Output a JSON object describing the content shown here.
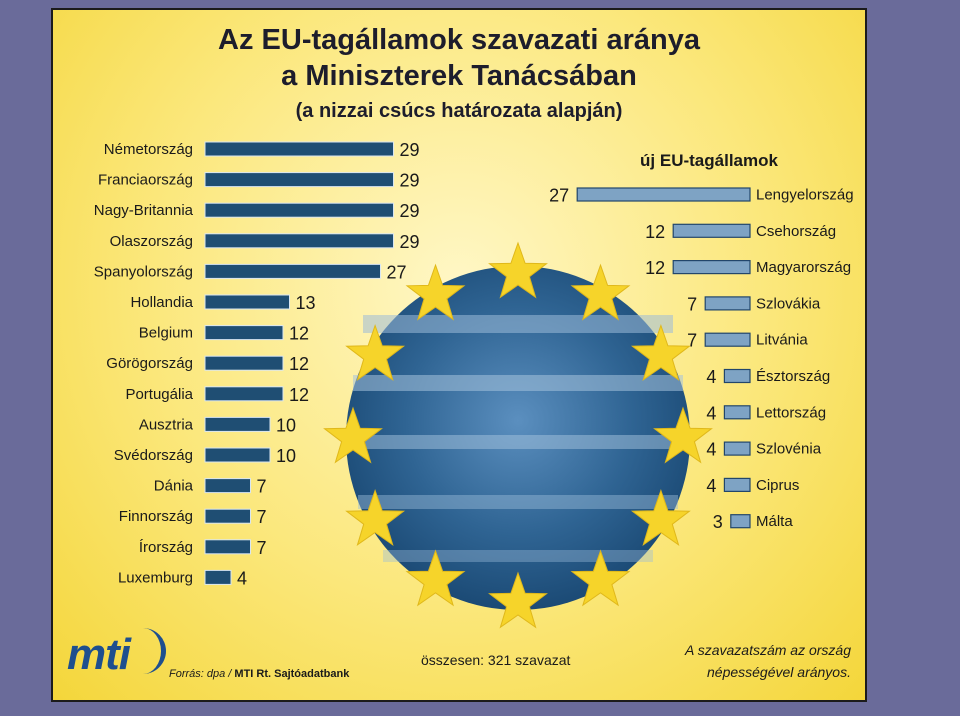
{
  "title_line1": "Az EU-tagállamok szavazati aránya",
  "title_line2": "a Miniszterek Tanácsában",
  "subtitle": "(a nizzai csúcs határozata alapján)",
  "logo_text": "mti",
  "source_prefix": "Forrás: dpa / ",
  "source_name": "MTI Rt. Sajtóadatbank",
  "total_label": "összesen: 321 szavazat",
  "note_line1": "A szavazatszám az ország",
  "note_line2": "népességével arányos.",
  "colors": {
    "old_bar": "#1f4e73",
    "new_bar": "#7ea3c4",
    "star": "#f6d42a",
    "poster_bg": "#fbe77a",
    "frame_bg": "#6a6b9a"
  },
  "chart_data": [
    {
      "type": "bar",
      "orientation": "horizontal",
      "categories": [
        "Németország",
        "Franciaország",
        "Nagy-Britannia",
        "Olaszország",
        "Spanyolország",
        "Hollandia",
        "Belgium",
        "Görögország",
        "Portugália",
        "Ausztria",
        "Svédország",
        "Dánia",
        "Finnország",
        "Írország",
        "Luxemburg"
      ],
      "values": [
        29,
        29,
        29,
        29,
        27,
        13,
        12,
        12,
        12,
        10,
        10,
        7,
        7,
        7,
        4
      ]
    },
    {
      "type": "bar",
      "orientation": "horizontal",
      "title": "új EU-tagállamok",
      "categories": [
        "Lengyelország",
        "Csehország",
        "Magyarország",
        "Szlovákia",
        "Litvánia",
        "Észtország",
        "Lettország",
        "Szlovénia",
        "Ciprus",
        "Málta"
      ],
      "values": [
        27,
        12,
        12,
        7,
        7,
        4,
        4,
        4,
        4,
        3
      ]
    }
  ]
}
